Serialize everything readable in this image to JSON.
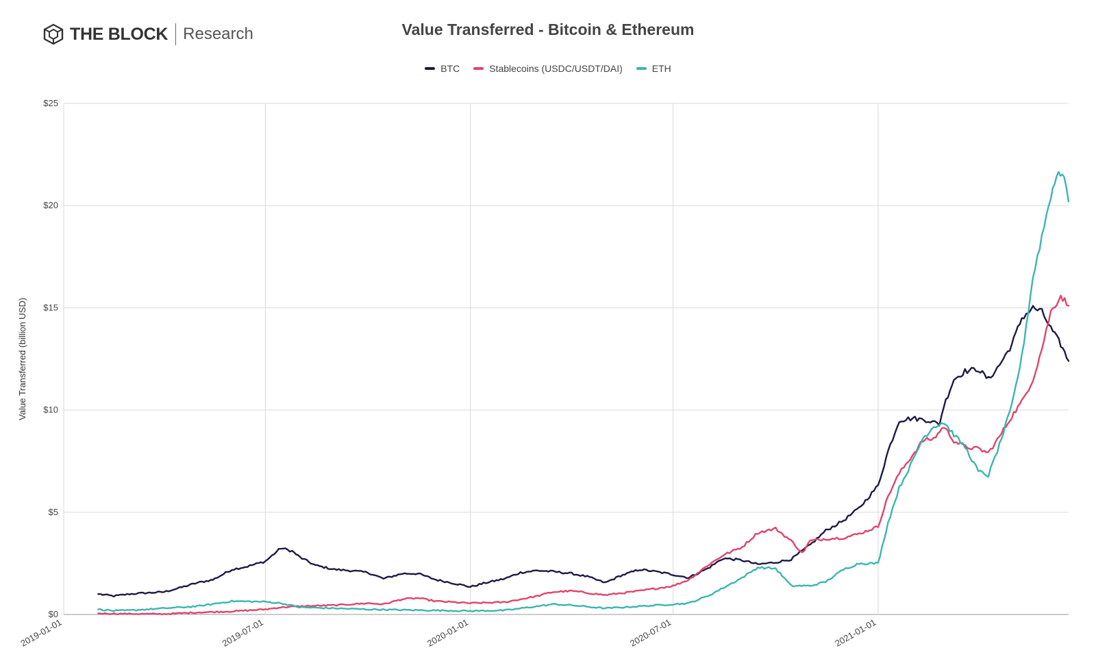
{
  "brand": {
    "name": "THE BLOCK",
    "sub": "Research"
  },
  "colors": {
    "btc": "#1c1a44",
    "stable": "#e0446a",
    "eth": "#3bb6ae",
    "grid": "#d9d9d9"
  },
  "chart_data": {
    "type": "line",
    "title": "Value Transferred - Bitcoin & Ethereum",
    "xlabel": "",
    "ylabel": "Value Transferred (billion USD)",
    "x_ticks": [
      "2019-01-01",
      "2019-07-01",
      "2020-01-01",
      "2020-07-01",
      "2021-01-01"
    ],
    "y_ticks": [
      "$0",
      "$5",
      "$10",
      "$15",
      "$20",
      "$25"
    ],
    "ylim": [
      0,
      25
    ],
    "xlim": [
      "2019-01-01",
      "2021-06-21"
    ],
    "grid": true,
    "legend_position": "top-center",
    "series": [
      {
        "name": "BTC",
        "color": "#1c1a44",
        "points": [
          [
            "2019-02-01",
            1.0
          ],
          [
            "2019-02-15",
            0.9
          ],
          [
            "2019-03-01",
            1.0
          ],
          [
            "2019-03-15",
            1.05
          ],
          [
            "2019-04-01",
            1.1
          ],
          [
            "2019-04-15",
            1.3
          ],
          [
            "2019-05-01",
            1.55
          ],
          [
            "2019-05-15",
            1.7
          ],
          [
            "2019-06-01",
            2.2
          ],
          [
            "2019-06-15",
            2.35
          ],
          [
            "2019-07-01",
            2.6
          ],
          [
            "2019-07-15",
            3.25
          ],
          [
            "2019-07-25",
            3.1
          ],
          [
            "2019-08-01",
            2.8
          ],
          [
            "2019-08-15",
            2.4
          ],
          [
            "2019-09-01",
            2.2
          ],
          [
            "2019-09-15",
            2.15
          ],
          [
            "2019-10-01",
            2.05
          ],
          [
            "2019-10-15",
            1.75
          ],
          [
            "2019-11-01",
            2.0
          ],
          [
            "2019-11-15",
            2.0
          ],
          [
            "2019-12-01",
            1.7
          ],
          [
            "2019-12-15",
            1.55
          ],
          [
            "2020-01-01",
            1.35
          ],
          [
            "2020-01-15",
            1.55
          ],
          [
            "2020-02-01",
            1.75
          ],
          [
            "2020-02-15",
            2.05
          ],
          [
            "2020-03-01",
            2.15
          ],
          [
            "2020-03-15",
            2.1
          ],
          [
            "2020-04-01",
            2.0
          ],
          [
            "2020-04-15",
            1.85
          ],
          [
            "2020-05-01",
            1.55
          ],
          [
            "2020-05-15",
            1.9
          ],
          [
            "2020-06-01",
            2.2
          ],
          [
            "2020-06-15",
            2.1
          ],
          [
            "2020-07-01",
            1.95
          ],
          [
            "2020-07-15",
            1.8
          ],
          [
            "2020-08-01",
            2.25
          ],
          [
            "2020-08-15",
            2.75
          ],
          [
            "2020-09-01",
            2.65
          ],
          [
            "2020-09-15",
            2.45
          ],
          [
            "2020-10-01",
            2.55
          ],
          [
            "2020-10-15",
            2.7
          ],
          [
            "2020-11-01",
            3.4
          ],
          [
            "2020-11-15",
            4.1
          ],
          [
            "2020-12-01",
            4.6
          ],
          [
            "2020-12-15",
            5.2
          ],
          [
            "2021-01-01",
            6.3
          ],
          [
            "2021-01-10",
            8.0
          ],
          [
            "2021-01-20",
            9.5
          ],
          [
            "2021-02-01",
            9.6
          ],
          [
            "2021-02-15",
            9.5
          ],
          [
            "2021-02-25",
            9.3
          ],
          [
            "2021-03-01",
            10.2
          ],
          [
            "2021-03-10",
            11.5
          ],
          [
            "2021-03-20",
            11.9
          ],
          [
            "2021-04-01",
            12.0
          ],
          [
            "2021-04-10",
            11.5
          ],
          [
            "2021-04-20",
            12.2
          ],
          [
            "2021-05-01",
            13.2
          ],
          [
            "2021-05-10",
            14.5
          ],
          [
            "2021-05-20",
            15.0
          ],
          [
            "2021-05-28",
            14.8
          ],
          [
            "2021-06-05",
            14.0
          ],
          [
            "2021-06-14",
            13.2
          ],
          [
            "2021-06-21",
            12.4
          ]
        ]
      },
      {
        "name": "Stablecoins (USDC/USDT/DAI)",
        "color": "#e0446a",
        "points": [
          [
            "2019-02-01",
            0.05
          ],
          [
            "2019-03-01",
            0.03
          ],
          [
            "2019-04-01",
            0.02
          ],
          [
            "2019-05-01",
            0.1
          ],
          [
            "2019-06-01",
            0.15
          ],
          [
            "2019-07-01",
            0.25
          ],
          [
            "2019-07-15",
            0.35
          ],
          [
            "2019-08-01",
            0.4
          ],
          [
            "2019-09-01",
            0.45
          ],
          [
            "2019-10-01",
            0.55
          ],
          [
            "2019-10-15",
            0.5
          ],
          [
            "2019-11-01",
            0.75
          ],
          [
            "2019-11-15",
            0.8
          ],
          [
            "2019-12-01",
            0.65
          ],
          [
            "2020-01-01",
            0.55
          ],
          [
            "2020-02-01",
            0.6
          ],
          [
            "2020-03-01",
            0.9
          ],
          [
            "2020-03-15",
            1.1
          ],
          [
            "2020-04-01",
            1.15
          ],
          [
            "2020-05-01",
            0.95
          ],
          [
            "2020-06-01",
            1.15
          ],
          [
            "2020-07-01",
            1.4
          ],
          [
            "2020-07-15",
            1.7
          ],
          [
            "2020-08-01",
            2.4
          ],
          [
            "2020-08-15",
            2.9
          ],
          [
            "2020-09-01",
            3.3
          ],
          [
            "2020-09-15",
            4.0
          ],
          [
            "2020-10-01",
            4.2
          ],
          [
            "2020-10-15",
            3.6
          ],
          [
            "2020-10-25",
            3.0
          ],
          [
            "2020-11-01",
            3.6
          ],
          [
            "2020-11-15",
            3.7
          ],
          [
            "2020-12-01",
            3.75
          ],
          [
            "2020-12-15",
            3.95
          ],
          [
            "2021-01-01",
            4.3
          ],
          [
            "2021-01-10",
            5.8
          ],
          [
            "2021-01-20",
            6.9
          ],
          [
            "2021-02-01",
            7.8
          ],
          [
            "2021-02-10",
            8.5
          ],
          [
            "2021-02-20",
            8.6
          ],
          [
            "2021-03-01",
            9.2
          ],
          [
            "2021-03-10",
            8.5
          ],
          [
            "2021-03-20",
            8.2
          ],
          [
            "2021-04-01",
            8.1
          ],
          [
            "2021-04-10",
            7.9
          ],
          [
            "2021-04-20",
            8.7
          ],
          [
            "2021-05-01",
            9.7
          ],
          [
            "2021-05-10",
            10.4
          ],
          [
            "2021-05-20",
            11.5
          ],
          [
            "2021-05-28",
            13.0
          ],
          [
            "2021-06-05",
            14.8
          ],
          [
            "2021-06-14",
            15.6
          ],
          [
            "2021-06-21",
            15.1
          ]
        ]
      },
      {
        "name": "ETH",
        "color": "#3bb6ae",
        "points": [
          [
            "2019-02-01",
            0.25
          ],
          [
            "2019-02-15",
            0.18
          ],
          [
            "2019-03-01",
            0.2
          ],
          [
            "2019-04-01",
            0.3
          ],
          [
            "2019-05-01",
            0.4
          ],
          [
            "2019-06-01",
            0.65
          ],
          [
            "2019-07-01",
            0.62
          ],
          [
            "2019-07-15",
            0.55
          ],
          [
            "2019-08-01",
            0.35
          ],
          [
            "2019-09-01",
            0.3
          ],
          [
            "2019-10-01",
            0.25
          ],
          [
            "2019-11-01",
            0.22
          ],
          [
            "2019-12-01",
            0.2
          ],
          [
            "2020-01-01",
            0.17
          ],
          [
            "2020-02-01",
            0.2
          ],
          [
            "2020-03-01",
            0.4
          ],
          [
            "2020-03-15",
            0.5
          ],
          [
            "2020-04-01",
            0.45
          ],
          [
            "2020-05-01",
            0.3
          ],
          [
            "2020-06-01",
            0.4
          ],
          [
            "2020-07-01",
            0.5
          ],
          [
            "2020-07-15",
            0.55
          ],
          [
            "2020-08-01",
            0.9
          ],
          [
            "2020-08-15",
            1.3
          ],
          [
            "2020-09-01",
            1.8
          ],
          [
            "2020-09-15",
            2.3
          ],
          [
            "2020-10-01",
            2.25
          ],
          [
            "2020-10-15",
            1.4
          ],
          [
            "2020-11-01",
            1.4
          ],
          [
            "2020-11-15",
            1.6
          ],
          [
            "2020-12-01",
            2.2
          ],
          [
            "2020-12-15",
            2.5
          ],
          [
            "2021-01-01",
            2.5
          ],
          [
            "2021-01-10",
            4.5
          ],
          [
            "2021-01-20",
            6.2
          ],
          [
            "2021-02-01",
            7.5
          ],
          [
            "2021-02-10",
            8.6
          ],
          [
            "2021-02-20",
            9.2
          ],
          [
            "2021-03-01",
            9.4
          ],
          [
            "2021-03-10",
            8.8
          ],
          [
            "2021-03-20",
            8.2
          ],
          [
            "2021-04-01",
            7.0
          ],
          [
            "2021-04-10",
            6.8
          ],
          [
            "2021-04-20",
            8.3
          ],
          [
            "2021-05-01",
            10.2
          ],
          [
            "2021-05-10",
            12.6
          ],
          [
            "2021-05-20",
            16.5
          ],
          [
            "2021-05-28",
            18.5
          ],
          [
            "2021-06-05",
            20.5
          ],
          [
            "2021-06-12",
            21.7
          ],
          [
            "2021-06-17",
            21.5
          ],
          [
            "2021-06-21",
            20.2
          ]
        ]
      }
    ]
  }
}
